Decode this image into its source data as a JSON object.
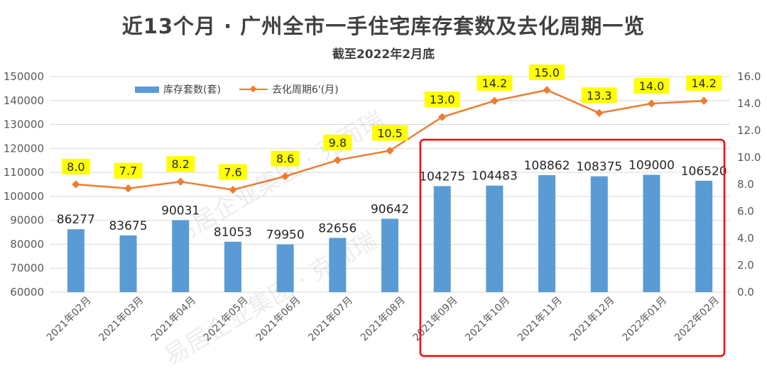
{
  "title": "近13个月 · 广州全市一手住宅库存套数及去化周期一览",
  "subtitle": "截至2022年2月底",
  "watermark": "易居企业集团 · 克而瑞",
  "colors": {
    "bar": "#5b9bd5",
    "line": "#ed7d31",
    "label_highlight": "#ffff00",
    "highlight_box": "#ff0000"
  },
  "chart_data": {
    "type": "bar+line",
    "categories": [
      "2021年02月",
      "2021年03月",
      "2021年04月",
      "2021年05月",
      "2021年06月",
      "2021年07月",
      "2021年08月",
      "2021年09月",
      "2021年10月",
      "2021年11月",
      "2021年12月",
      "2022年01月",
      "2022年02月"
    ],
    "series": [
      {
        "name": "库存套数(套)",
        "type": "bar",
        "axis": "left",
        "values": [
          86277,
          83675,
          90031,
          81053,
          79950,
          82656,
          90642,
          104275,
          104483,
          108862,
          108375,
          109000,
          106520
        ]
      },
      {
        "name": "去化周期6'(月)",
        "type": "line",
        "axis": "right",
        "values": [
          8.0,
          7.7,
          8.2,
          7.6,
          8.6,
          9.8,
          10.5,
          13.0,
          14.2,
          15.0,
          13.3,
          14.0,
          14.2
        ]
      }
    ],
    "left_axis": {
      "min": 60000,
      "max": 150000,
      "step": 10000
    },
    "right_axis": {
      "min": 0.0,
      "max": 16.0,
      "step": 2.0
    },
    "left_ticks": [
      "60000",
      "70000",
      "80000",
      "90000",
      "100000",
      "110000",
      "120000",
      "130000",
      "140000",
      "150000"
    ],
    "right_ticks": [
      "0.0",
      "2.0",
      "4.0",
      "6.0",
      "8.0",
      "10.0",
      "12.0",
      "14.0",
      "16.0"
    ],
    "line_labels": [
      "8.0",
      "7.7",
      "8.2",
      "7.6",
      "8.6",
      "9.8",
      "10.5",
      "13.0",
      "14.2",
      "15.0",
      "13.3",
      "14.0",
      "14.2"
    ],
    "grid": true,
    "legend_position": "top-left",
    "highlight_range": [
      "2021年09月",
      "2022年02月"
    ]
  }
}
